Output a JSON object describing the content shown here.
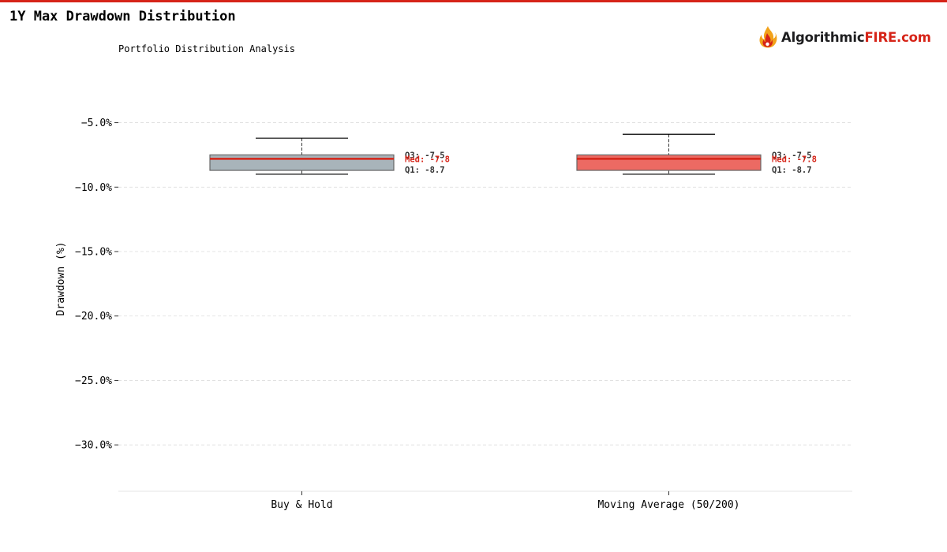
{
  "page": {
    "title": "1Y Max Drawdown Distribution",
    "subtitle": "Portfolio Distribution Analysis"
  },
  "logo": {
    "text_dark": "Algorithmic",
    "text_red": "FIRE.com",
    "icon": "flame-icon"
  },
  "colors": {
    "accent": "#d62418",
    "median_line": "#d62418",
    "grid": "#dddddd",
    "box_edge": "#666666",
    "whisker": "#333333"
  },
  "chart_data": {
    "type": "box",
    "title": "",
    "xlabel": "",
    "ylabel": "Drawdown (%)",
    "ylim": [
      -33.6,
      -1.6
    ],
    "yticks": [
      -5.0,
      -10.0,
      -15.0,
      -20.0,
      -25.0,
      -30.0
    ],
    "ytick_labels": [
      "−5.0%",
      "−10.0%",
      "−15.0%",
      "−20.0%",
      "−25.0%",
      "−30.0%"
    ],
    "grid": true,
    "categories": [
      "Buy & Hold",
      "Moving Average (50/200)"
    ],
    "series": [
      {
        "whisker_high": -6.2,
        "q3": -7.5,
        "median": -7.8,
        "q1": -8.7,
        "whisker_low": -9.0,
        "fill": "#a8b4ba",
        "labels": {
          "q3": "Q3: -7.5",
          "median": "Med: -7.8",
          "q1": "Q1: -8.7"
        }
      },
      {
        "whisker_high": -5.9,
        "q3": -7.5,
        "median": -7.8,
        "q1": -8.7,
        "whisker_low": -9.0,
        "fill": "#ec6a63",
        "labels": {
          "q3": "Q3: -7.5",
          "median": "Med: -7.8",
          "q1": "Q1: -8.7"
        }
      }
    ]
  }
}
